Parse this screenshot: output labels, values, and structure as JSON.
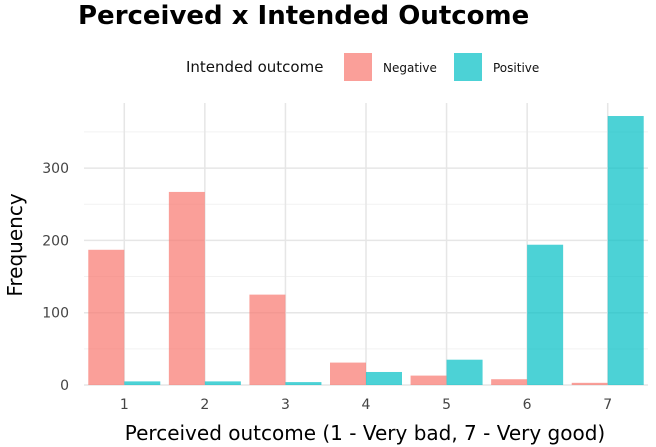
{
  "chart_data": {
    "type": "bar",
    "title": "Perceived x Intended Outcome",
    "xlabel": "Perceived outcome (1 - Very bad, 7 - Very good)",
    "ylabel": "Frequency",
    "categories": [
      "1",
      "2",
      "3",
      "4",
      "5",
      "6",
      "7"
    ],
    "series": [
      {
        "name": "Negative",
        "color": "#F8766D",
        "values": [
          187,
          267,
          125,
          31,
          13,
          8,
          3
        ]
      },
      {
        "name": "Positive",
        "color": "#00BFC4",
        "values": [
          5,
          5,
          4,
          18,
          35,
          194,
          372
        ]
      }
    ],
    "legend_title": "Intended outcome",
    "legend_position": "top",
    "ylim": [
      0,
      390
    ],
    "yticks": [
      0,
      100,
      200,
      300
    ],
    "grid": true
  }
}
